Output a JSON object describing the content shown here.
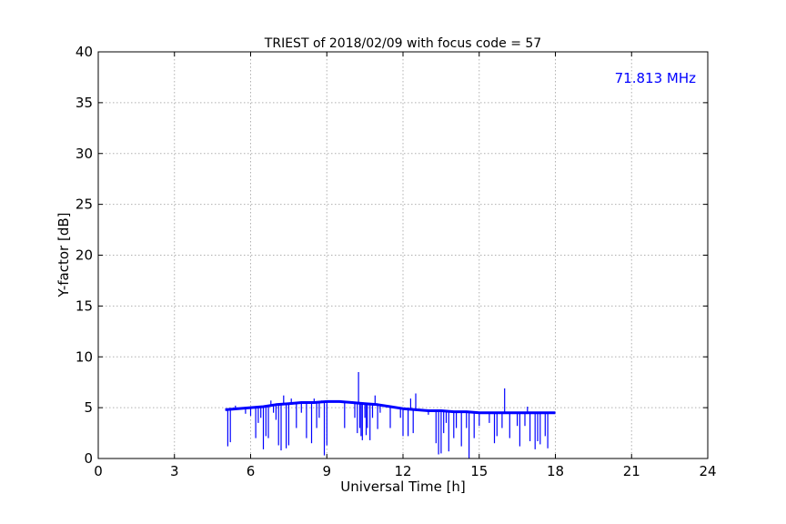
{
  "chart_data": {
    "type": "line",
    "title": "TRIEST of 2018/02/09 with focus code = 57",
    "xlabel": "Universal Time [h]",
    "ylabel": "Y-factor [dB]",
    "xlim": [
      0,
      24
    ],
    "ylim": [
      0,
      40
    ],
    "xticks": [
      0,
      3,
      6,
      9,
      12,
      15,
      18,
      21,
      24
    ],
    "xtick_labels": [
      "0",
      "3",
      "6",
      "9",
      "12",
      "15",
      "18",
      "21",
      "24"
    ],
    "yticks": [
      0,
      5,
      10,
      15,
      20,
      25,
      30,
      35,
      40
    ],
    "ytick_labels": [
      "0",
      "5",
      "10",
      "15",
      "20",
      "25",
      "30",
      "35",
      "40"
    ],
    "grid": true,
    "annotation": {
      "text": "71.813 MHz",
      "position": "top-right",
      "color": "#0000ff"
    },
    "series": [
      {
        "color": "#0000ff",
        "baseline": {
          "x": [
            5.0,
            5.5,
            6.0,
            6.5,
            7.0,
            7.5,
            8.0,
            8.5,
            9.0,
            9.5,
            10.0,
            10.5,
            11.0,
            11.5,
            12.0,
            12.5,
            13.0,
            13.5,
            14.0,
            14.5,
            15.0,
            15.5,
            16.0,
            16.5,
            17.0,
            17.5,
            18.0
          ],
          "y": [
            4.8,
            4.9,
            5.0,
            5.1,
            5.3,
            5.4,
            5.5,
            5.5,
            5.6,
            5.6,
            5.5,
            5.4,
            5.3,
            5.1,
            4.9,
            4.8,
            4.7,
            4.7,
            4.6,
            4.6,
            4.5,
            4.5,
            4.5,
            4.5,
            4.5,
            4.5,
            4.5
          ]
        },
        "spikes": [
          {
            "x": 5.1,
            "y": 1.2
          },
          {
            "x": 5.2,
            "y": 1.6
          },
          {
            "x": 5.4,
            "y": 5.2
          },
          {
            "x": 5.8,
            "y": 4.4
          },
          {
            "x": 6.0,
            "y": 4.2
          },
          {
            "x": 6.2,
            "y": 2.0
          },
          {
            "x": 6.3,
            "y": 3.5
          },
          {
            "x": 6.4,
            "y": 4.0
          },
          {
            "x": 6.5,
            "y": 0.9
          },
          {
            "x": 6.6,
            "y": 2.2
          },
          {
            "x": 6.7,
            "y": 2.0
          },
          {
            "x": 6.8,
            "y": 5.7
          },
          {
            "x": 6.9,
            "y": 4.5
          },
          {
            "x": 7.0,
            "y": 3.8
          },
          {
            "x": 7.1,
            "y": 1.3
          },
          {
            "x": 7.2,
            "y": 0.8
          },
          {
            "x": 7.3,
            "y": 6.2
          },
          {
            "x": 7.4,
            "y": 1.0
          },
          {
            "x": 7.5,
            "y": 1.3
          },
          {
            "x": 7.6,
            "y": 5.9
          },
          {
            "x": 7.8,
            "y": 3.0
          },
          {
            "x": 8.0,
            "y": 4.5
          },
          {
            "x": 8.2,
            "y": 2.0
          },
          {
            "x": 8.4,
            "y": 1.5
          },
          {
            "x": 8.5,
            "y": 5.9
          },
          {
            "x": 8.6,
            "y": 3.0
          },
          {
            "x": 8.7,
            "y": 4.0
          },
          {
            "x": 8.8,
            "y": 5.7
          },
          {
            "x": 8.9,
            "y": 0.3
          },
          {
            "x": 9.0,
            "y": 1.3
          },
          {
            "x": 9.2,
            "y": 5.6
          },
          {
            "x": 9.4,
            "y": 5.6
          },
          {
            "x": 9.7,
            "y": 3.0
          },
          {
            "x": 10.0,
            "y": 5.6
          },
          {
            "x": 10.1,
            "y": 4.0
          },
          {
            "x": 10.2,
            "y": 2.5
          },
          {
            "x": 10.25,
            "y": 8.5
          },
          {
            "x": 10.3,
            "y": 3.0
          },
          {
            "x": 10.35,
            "y": 2.2
          },
          {
            "x": 10.4,
            "y": 1.8
          },
          {
            "x": 10.5,
            "y": 4.0
          },
          {
            "x": 10.55,
            "y": 2.3
          },
          {
            "x": 10.6,
            "y": 3.0
          },
          {
            "x": 10.7,
            "y": 1.8
          },
          {
            "x": 10.8,
            "y": 4.0
          },
          {
            "x": 10.9,
            "y": 6.2
          },
          {
            "x": 11.0,
            "y": 2.9
          },
          {
            "x": 11.1,
            "y": 4.5
          },
          {
            "x": 11.5,
            "y": 3.0
          },
          {
            "x": 11.9,
            "y": 4.0
          },
          {
            "x": 12.0,
            "y": 2.2
          },
          {
            "x": 12.2,
            "y": 2.2
          },
          {
            "x": 12.3,
            "y": 5.9
          },
          {
            "x": 12.4,
            "y": 2.5
          },
          {
            "x": 12.5,
            "y": 6.4
          },
          {
            "x": 13.0,
            "y": 4.3
          },
          {
            "x": 13.3,
            "y": 1.5
          },
          {
            "x": 13.4,
            "y": 0.4
          },
          {
            "x": 13.5,
            "y": 0.5
          },
          {
            "x": 13.6,
            "y": 2.5
          },
          {
            "x": 13.7,
            "y": 3.5
          },
          {
            "x": 13.8,
            "y": 0.7
          },
          {
            "x": 14.0,
            "y": 2.0
          },
          {
            "x": 14.1,
            "y": 3.0
          },
          {
            "x": 14.3,
            "y": 1.2
          },
          {
            "x": 14.5,
            "y": 3.0
          },
          {
            "x": 14.6,
            "y": 0.0
          },
          {
            "x": 14.8,
            "y": 2.0
          },
          {
            "x": 15.0,
            "y": 3.2
          },
          {
            "x": 15.4,
            "y": 3.5
          },
          {
            "x": 15.6,
            "y": 1.5
          },
          {
            "x": 15.7,
            "y": 2.2
          },
          {
            "x": 15.9,
            "y": 3.0
          },
          {
            "x": 16.0,
            "y": 6.9
          },
          {
            "x": 16.2,
            "y": 2.0
          },
          {
            "x": 16.5,
            "y": 3.2
          },
          {
            "x": 16.6,
            "y": 1.2
          },
          {
            "x": 16.8,
            "y": 3.2
          },
          {
            "x": 16.9,
            "y": 5.1
          },
          {
            "x": 17.0,
            "y": 1.7
          },
          {
            "x": 17.2,
            "y": 0.9
          },
          {
            "x": 17.3,
            "y": 1.7
          },
          {
            "x": 17.4,
            "y": 1.4
          },
          {
            "x": 17.6,
            "y": 2.2
          },
          {
            "x": 17.7,
            "y": 1.0
          },
          {
            "x": 17.8,
            "y": 4.6
          }
        ]
      }
    ]
  }
}
